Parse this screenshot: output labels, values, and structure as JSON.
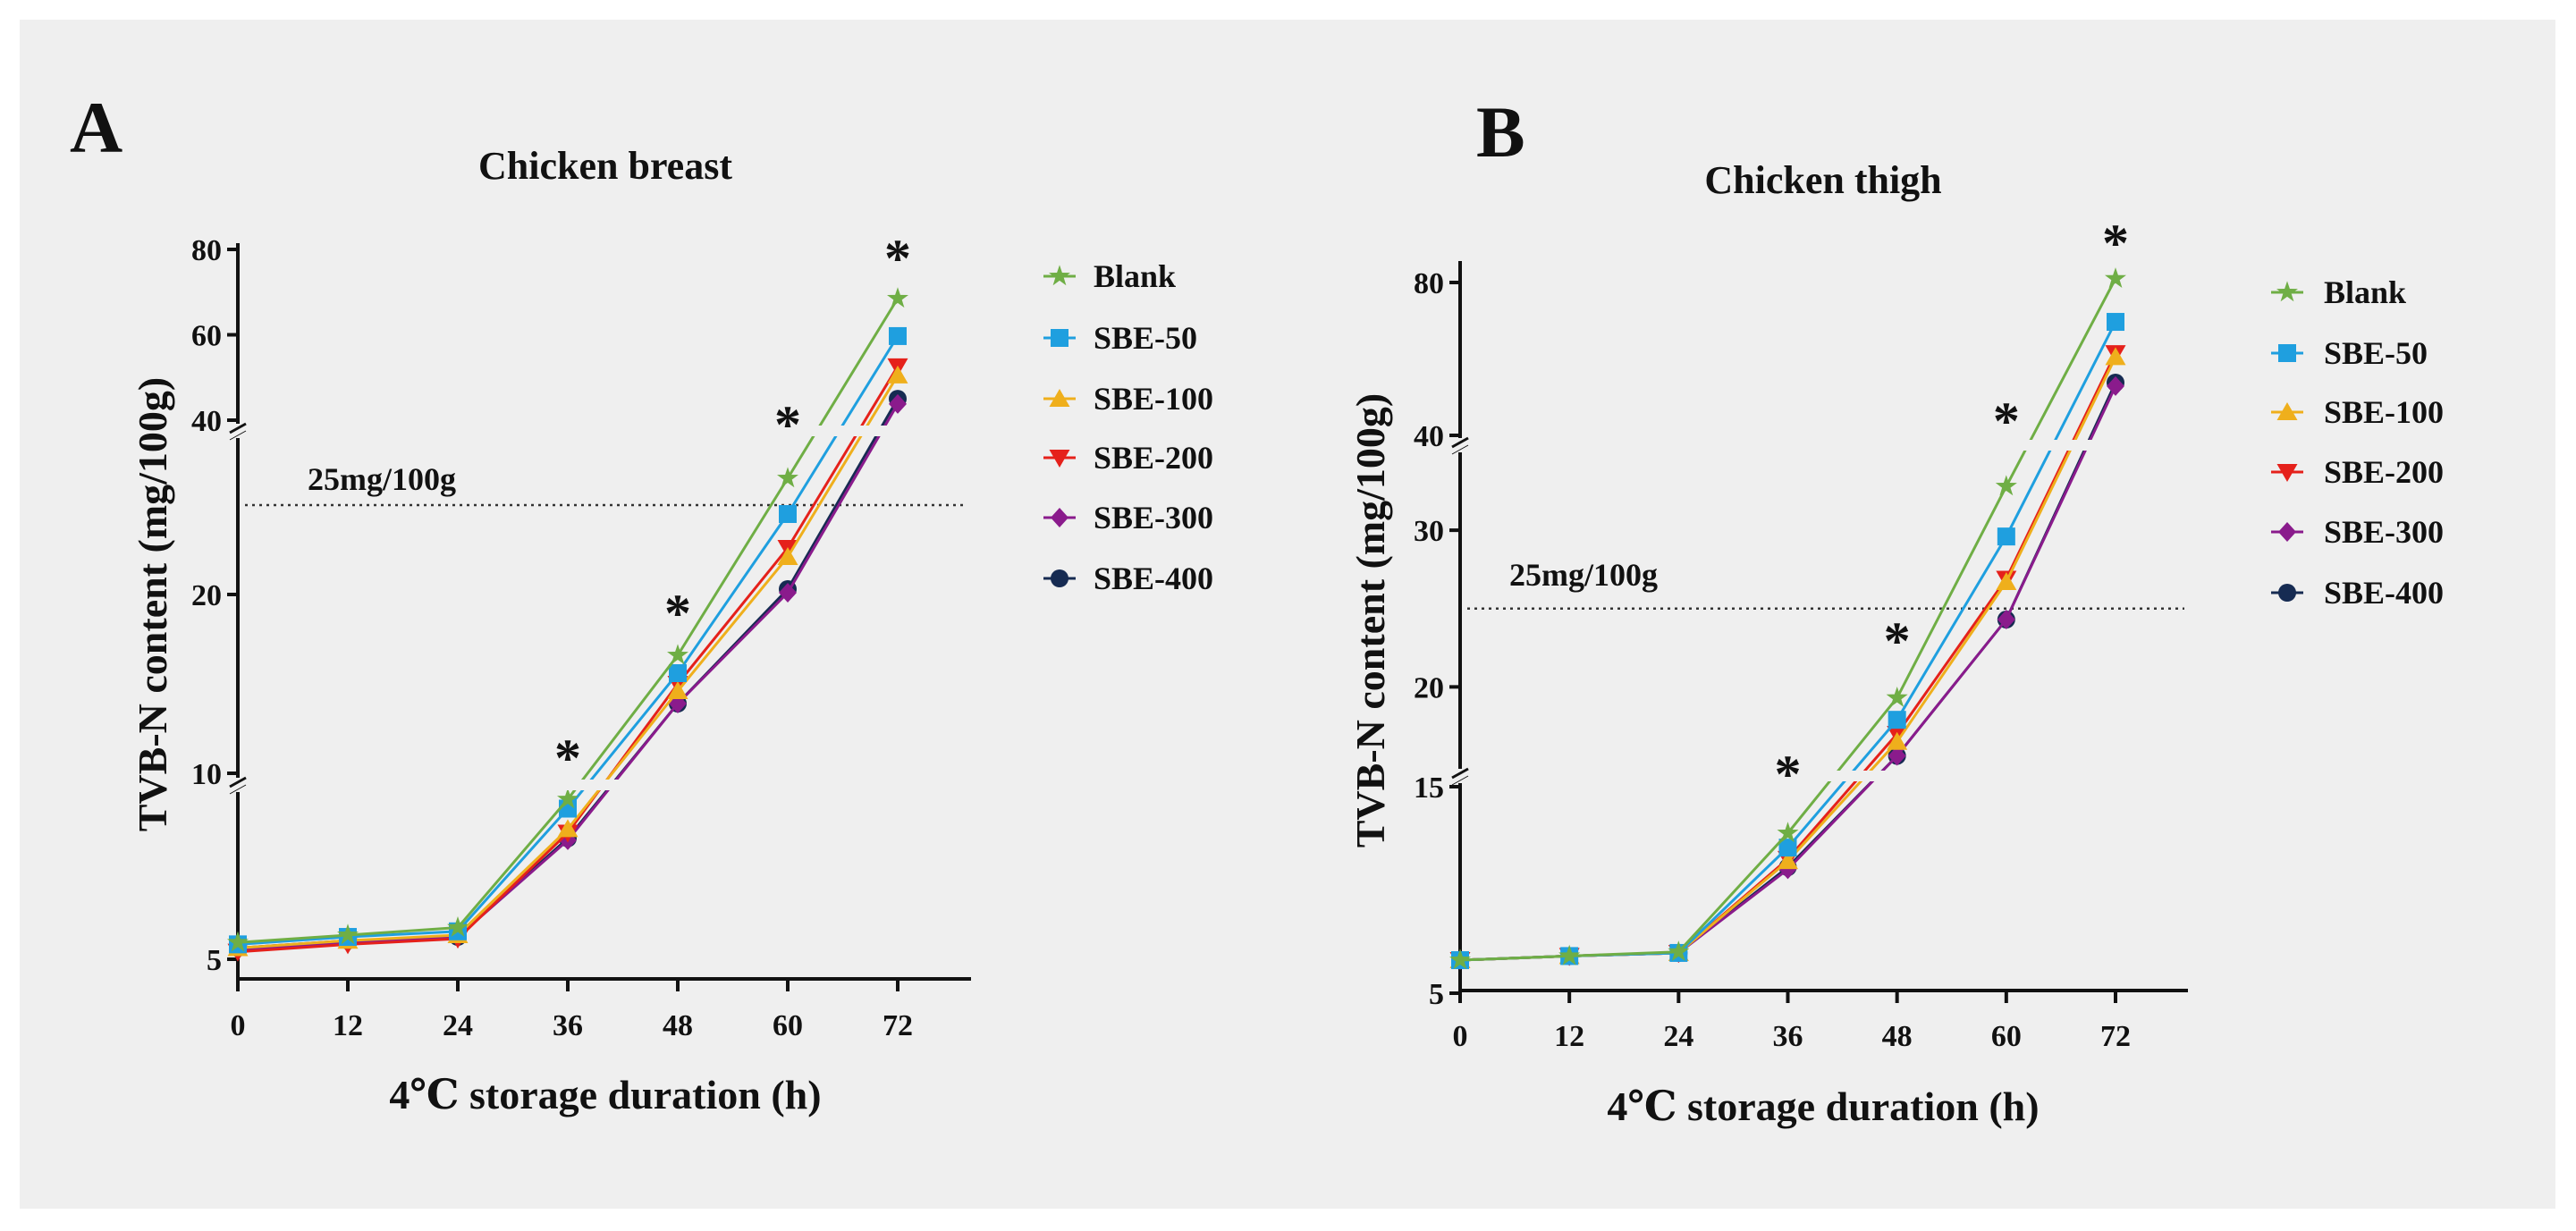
{
  "chart_data": [
    {
      "type": "line",
      "panel_label": "A",
      "title": "Chicken breast",
      "xlabel": "4℃ storage duration (h)",
      "ylabel": "TVB-N content (mg/100g)",
      "x": [
        0,
        12,
        24,
        36,
        48,
        60,
        72
      ],
      "x_ticks": [
        "0",
        "12",
        "24",
        "36",
        "48",
        "60",
        "72"
      ],
      "y_ticks": [
        "5",
        "10",
        "20",
        "40",
        "60",
        "80"
      ],
      "y_tick_values": [
        5,
        10,
        20,
        40,
        60,
        80
      ],
      "y_segments": [
        [
          5,
          10
        ],
        [
          10,
          28.6
        ],
        [
          40,
          80
        ]
      ],
      "threshold": {
        "value": 25,
        "label": "25mg/100g"
      },
      "significance_marks": {
        "x": [
          36,
          48,
          60,
          72
        ],
        "label": "*"
      },
      "series": [
        {
          "name": "Blank",
          "color": "#6fae45",
          "marker": "star",
          "values": [
            5.45,
            5.65,
            5.85,
            9.3,
            16.6,
            26.5,
            68.5
          ]
        },
        {
          "name": "SBE-50",
          "color": "#1f9fdf",
          "marker": "square",
          "values": [
            5.4,
            5.6,
            5.75,
            9.05,
            15.6,
            24.5,
            59.7
          ]
        },
        {
          "name": "SBE-100",
          "color": "#efaf1c",
          "marker": "triangle",
          "values": [
            5.3,
            5.5,
            5.65,
            8.5,
            14.6,
            22.1,
            50.5
          ]
        },
        {
          "name": "SBE-200",
          "color": "#e5211b",
          "marker": "triangle-down",
          "values": [
            5.2,
            5.4,
            5.55,
            8.4,
            15.0,
            22.6,
            52.6
          ]
        },
        {
          "name": "SBE-300",
          "color": "#8a1b8c",
          "marker": "diamond",
          "values": [
            5.25,
            5.45,
            5.6,
            8.2,
            13.9,
            20.1,
            43.8
          ]
        },
        {
          "name": "SBE-400",
          "color": "#162b52",
          "marker": "circle",
          "values": [
            5.3,
            5.5,
            5.6,
            8.25,
            13.9,
            20.3,
            45.0
          ]
        }
      ],
      "legend": "right"
    },
    {
      "type": "line",
      "panel_label": "B",
      "title": "Chicken thigh",
      "xlabel": "4℃ storage duration (h)",
      "ylabel": "TVB-N content (mg/100g)",
      "x": [
        0,
        12,
        24,
        36,
        48,
        60,
        72
      ],
      "x_ticks": [
        "0",
        "12",
        "24",
        "36",
        "48",
        "60",
        "72"
      ],
      "y_ticks": [
        "5",
        "15",
        "20",
        "30",
        "40",
        "80"
      ],
      "y_tick_values": [
        5,
        15,
        20,
        30,
        40,
        80
      ],
      "y_segments": [
        [
          5,
          15
        ],
        [
          15,
          34.8
        ],
        [
          40,
          80
        ]
      ],
      "threshold": {
        "value": 25,
        "label": "25mg/100g"
      },
      "significance_marks": {
        "x": [
          36,
          48,
          60,
          72
        ],
        "label": "*"
      },
      "series": [
        {
          "name": "Blank",
          "color": "#6fae45",
          "marker": "star",
          "values": [
            6.6,
            6.8,
            7.0,
            12.75,
            19.3,
            32.8,
            81.0
          ]
        },
        {
          "name": "SBE-50",
          "color": "#1f9fdf",
          "marker": "square",
          "values": [
            6.6,
            6.8,
            6.95,
            12.05,
            17.9,
            29.6,
            69.7
          ]
        },
        {
          "name": "SBE-100",
          "color": "#efaf1c",
          "marker": "triangle",
          "values": [
            6.6,
            6.8,
            6.95,
            11.4,
            16.5,
            26.7,
            60.5
          ]
        },
        {
          "name": "SBE-200",
          "color": "#e5211b",
          "marker": "triangle-down",
          "values": [
            6.6,
            6.8,
            6.95,
            11.5,
            17.0,
            26.9,
            61.5
          ]
        },
        {
          "name": "SBE-300",
          "color": "#8a1b8c",
          "marker": "diamond",
          "values": [
            6.6,
            6.8,
            6.95,
            11.0,
            15.6,
            24.3,
            52.9
          ]
        },
        {
          "name": "SBE-400",
          "color": "#162b52",
          "marker": "circle",
          "values": [
            6.6,
            6.8,
            6.95,
            11.1,
            15.6,
            24.3,
            53.8
          ]
        }
      ],
      "legend": "right"
    }
  ]
}
